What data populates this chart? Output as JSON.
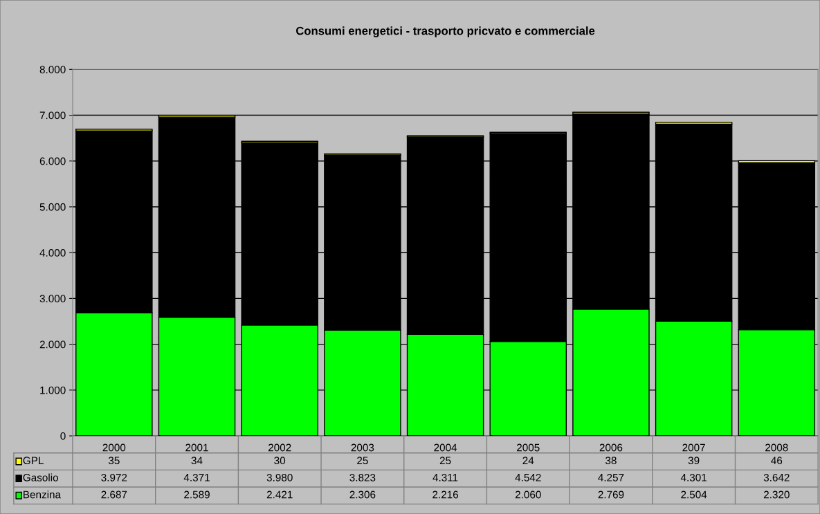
{
  "chart_data": {
    "type": "bar",
    "title": "Consumi energetici - trasporto pricvato e commerciale",
    "categories": [
      "2000",
      "2001",
      "2002",
      "2003",
      "2004",
      "2005",
      "2006",
      "2007",
      "2008"
    ],
    "stacked": true,
    "series": [
      {
        "name": "Benzina",
        "color": "#00ff00",
        "values": [
          2687,
          2589,
          2421,
          2306,
          2216,
          2060,
          2769,
          2504,
          2320
        ],
        "value_labels": [
          "2.687",
          "2.589",
          "2.421",
          "2.306",
          "2.216",
          "2.060",
          "2.769",
          "2.504",
          "2.320"
        ]
      },
      {
        "name": "Gasolio",
        "color": "#000000",
        "values": [
          3972,
          4371,
          3980,
          3823,
          4311,
          4542,
          4257,
          4301,
          3642
        ],
        "value_labels": [
          "3.972",
          "4.371",
          "3.980",
          "3.823",
          "4.311",
          "4.542",
          "4.257",
          "4.301",
          "3.642"
        ]
      },
      {
        "name": "GPL",
        "color": "#ffff00",
        "values": [
          35,
          34,
          30,
          25,
          25,
          24,
          38,
          39,
          46
        ],
        "value_labels": [
          "35",
          "34",
          "30",
          "25",
          "25",
          "24",
          "38",
          "39",
          "46"
        ]
      }
    ],
    "ylim": [
      0,
      8000
    ],
    "yticks": [
      {
        "value": 0,
        "label": "0"
      },
      {
        "value": 1000,
        "label": "1.000"
      },
      {
        "value": 2000,
        "label": "2.000"
      },
      {
        "value": 3000,
        "label": "3.000"
      },
      {
        "value": 4000,
        "label": "4.000"
      },
      {
        "value": 5000,
        "label": "5.000"
      },
      {
        "value": 6000,
        "label": "6.000"
      },
      {
        "value": 7000,
        "label": "7.000"
      },
      {
        "value": 8000,
        "label": "8.000"
      }
    ],
    "grid": "y",
    "legend": "bottom left"
  }
}
